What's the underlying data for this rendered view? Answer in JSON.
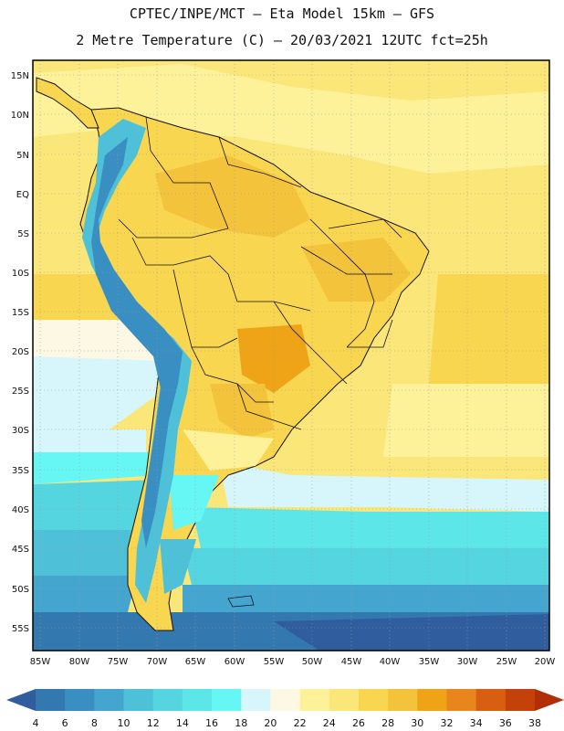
{
  "header": {
    "line1": "CPTEC/INPE/MCT –  Eta Model 15km – GFS",
    "line2": "2 Metre Temperature (C) – 20/03/2021 12UTC fct=25h"
  },
  "axes": {
    "lat_labels": [
      "15N",
      "10N",
      "5N",
      "EQ",
      "5S",
      "10S",
      "15S",
      "20S",
      "25S",
      "30S",
      "35S",
      "40S",
      "45S",
      "50S",
      "55S"
    ],
    "lon_labels": [
      "85W",
      "80W",
      "75W",
      "70W",
      "65W",
      "60W",
      "55W",
      "50W",
      "45W",
      "40W",
      "35W",
      "30W",
      "25W",
      "20W"
    ]
  },
  "colorbar": {
    "labels": [
      "4",
      "6",
      "8",
      "10",
      "12",
      "14",
      "16",
      "18",
      "20",
      "22",
      "24",
      "26",
      "28",
      "30",
      "32",
      "34",
      "36",
      "38"
    ],
    "colors": [
      "#2f5d9e",
      "#3478b0",
      "#3a8fc2",
      "#44a6cf",
      "#4ec0d8",
      "#55d5e0",
      "#5ce6e8",
      "#66f7f4",
      "#d6f6fb",
      "#fdf8e4",
      "#fdf29a",
      "#fbe679",
      "#f9d64f",
      "#f3c33b",
      "#eea416",
      "#e7861c",
      "#d85f12",
      "#c4420a",
      "#b22f05"
    ]
  }
}
